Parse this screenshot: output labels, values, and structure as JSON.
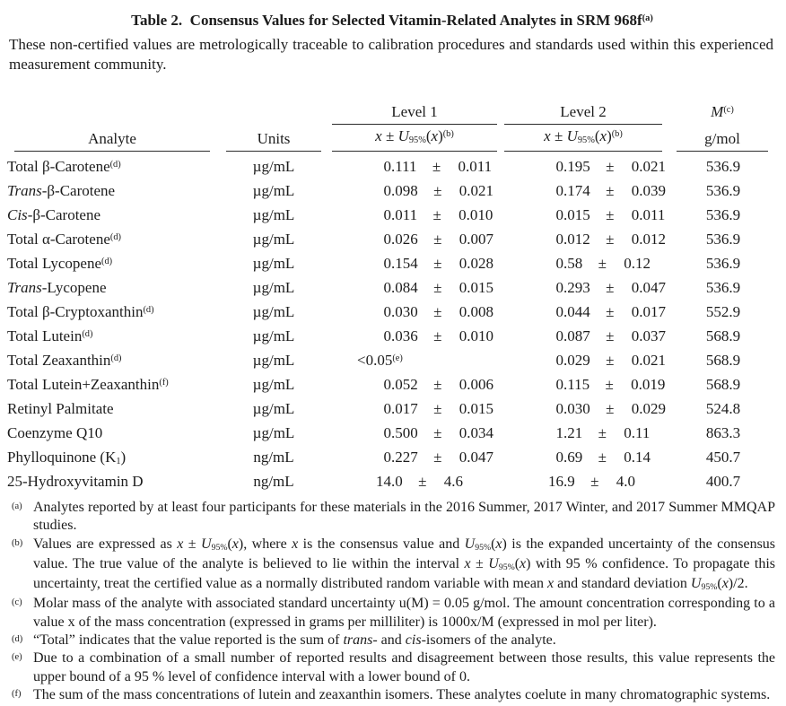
{
  "title": "Table 2.  Consensus Values for Selected Vitamin-Related Analytes in SRM 968f^(a)^",
  "intro": "These non-certified values are metrologically traceable to calibration procedures and standards used within this experienced measurement community.",
  "table": {
    "header": {
      "analyte": "Analyte",
      "units": "Units",
      "level1": "Level 1",
      "level2": "Level 2",
      "value_expression": "*x* ± *U*~95%~(*x*)^(b)^",
      "molar_mass": "*M*^(c)^",
      "molar_mass_units": "g/mol"
    },
    "rows": [
      {
        "analyte": "Total β-Carotene^(d)^",
        "units": "µg/mL",
        "level1": {
          "value": "0.111",
          "uncertainty": "0.011"
        },
        "level2": {
          "value": "0.195",
          "uncertainty": "0.021"
        },
        "molar_mass": "536.9"
      },
      {
        "analyte": "*Trans*-β-Carotene",
        "units": "µg/mL",
        "level1": {
          "value": "0.098",
          "uncertainty": "0.021"
        },
        "level2": {
          "value": "0.174",
          "uncertainty": "0.039"
        },
        "molar_mass": "536.9"
      },
      {
        "analyte": "*Cis*-β-Carotene",
        "units": "µg/mL",
        "level1": {
          "value": "0.011",
          "uncertainty": "0.010"
        },
        "level2": {
          "value": "0.015",
          "uncertainty": "0.011"
        },
        "molar_mass": "536.9"
      },
      {
        "analyte": "Total α-Carotene^(d)^",
        "units": "µg/mL",
        "level1": {
          "value": "0.026",
          "uncertainty": "0.007"
        },
        "level2": {
          "value": "0.012",
          "uncertainty": "0.012"
        },
        "molar_mass": "536.9"
      },
      {
        "analyte": "Total Lycopene^(d)^",
        "units": "µg/mL",
        "level1": {
          "value": "0.154",
          "uncertainty": "0.028"
        },
        "level2": {
          "value": "0.58",
          "uncertainty": "0.12"
        },
        "molar_mass": "536.9"
      },
      {
        "analyte": "*Trans*-Lycopene",
        "units": "µg/mL",
        "level1": {
          "value": "0.084",
          "uncertainty": "0.015"
        },
        "level2": {
          "value": "0.293",
          "uncertainty": "0.047"
        },
        "molar_mass": "536.9"
      },
      {
        "analyte": "Total β-Cryptoxanthin^(d)^",
        "units": "µg/mL",
        "level1": {
          "value": "0.030",
          "uncertainty": "0.008"
        },
        "level2": {
          "value": "0.044",
          "uncertainty": "0.017"
        },
        "molar_mass": "552.9"
      },
      {
        "analyte": "Total Lutein^(d)^",
        "units": "µg/mL",
        "level1": {
          "value": "0.036",
          "uncertainty": "0.010"
        },
        "level2": {
          "value": "0.087",
          "uncertainty": "0.037"
        },
        "molar_mass": "568.9"
      },
      {
        "analyte": "Total Zeaxanthin^(d)^",
        "units": "µg/mL",
        "level1": {
          "value": "<0.05^(e)^",
          "uncertainty": null
        },
        "level2": {
          "value": "0.029",
          "uncertainty": "0.021"
        },
        "molar_mass": "568.9"
      },
      {
        "analyte": "Total Lutein+Zeaxanthin^(f)^",
        "units": "µg/mL",
        "level1": {
          "value": "0.052",
          "uncertainty": "0.006"
        },
        "level2": {
          "value": "0.115",
          "uncertainty": "0.019"
        },
        "molar_mass": "568.9"
      },
      {
        "analyte": "Retinyl Palmitate",
        "units": "µg/mL",
        "level1": {
          "value": "0.017",
          "uncertainty": "0.015"
        },
        "level2": {
          "value": "0.030",
          "uncertainty": "0.029"
        },
        "molar_mass": "524.8"
      },
      {
        "analyte": "Coenzyme Q10",
        "units": "µg/mL",
        "level1": {
          "value": "0.500",
          "uncertainty": "0.034"
        },
        "level2": {
          "value": "1.21",
          "uncertainty": "0.11"
        },
        "molar_mass": "863.3"
      },
      {
        "analyte": "Phylloquinone (K~1~)",
        "units": "ng/mL",
        "level1": {
          "value": "0.227",
          "uncertainty": "0.047"
        },
        "level2": {
          "value": "0.69",
          "uncertainty": "0.14"
        },
        "molar_mass": "450.7"
      },
      {
        "analyte": "25-Hydroxyvitamin D",
        "units": "ng/mL",
        "level1": {
          "value": "14.0",
          "uncertainty": "4.6"
        },
        "level2": {
          "value": "16.9",
          "uncertainty": "4.0"
        },
        "molar_mass": "400.7"
      }
    ]
  },
  "footnotes": [
    {
      "marker": "(a)",
      "text": "Analytes reported by at least four participants for these materials in the 2016 Summer, 2017 Winter, and 2017 Summer MMQAP studies."
    },
    {
      "marker": "(b)",
      "text": "Values are expressed as *x* ± *U*~95%~(*x*), where *x* is the consensus value and *U*~95%~(*x*) is the expanded uncertainty of the consensus value.  The true value of the analyte is believed to lie within the interval *x* ± *U*~95%~(*x*) with 95 % confidence.  To propagate this uncertainty, treat the certified value as a normally distributed random variable with mean *x* and standard deviation *U*~95%~(*x*)/2."
    },
    {
      "marker": "(c)",
      "text": "Molar mass of the analyte with associated standard uncertainty u(M) = 0.05 g/mol.  The amount concentration corresponding to a value x of the mass concentration (expressed in grams per milliliter) is 1000x/M (expressed in mol per liter)."
    },
    {
      "marker": "(d)",
      "text": "“Total” indicates that the value reported is the sum of *trans*- and *cis*-isomers of the analyte."
    },
    {
      "marker": "(e)",
      "text": "Due to a combination of a small number of reported results and disagreement between those results, this value represents the upper bound of a 95 % level of confidence interval with a lower bound of 0."
    },
    {
      "marker": "(f)",
      "text": "The sum of the mass concentrations of lutein and zeaxanthin isomers.  These analytes coelute in many chromatographic systems."
    }
  ]
}
